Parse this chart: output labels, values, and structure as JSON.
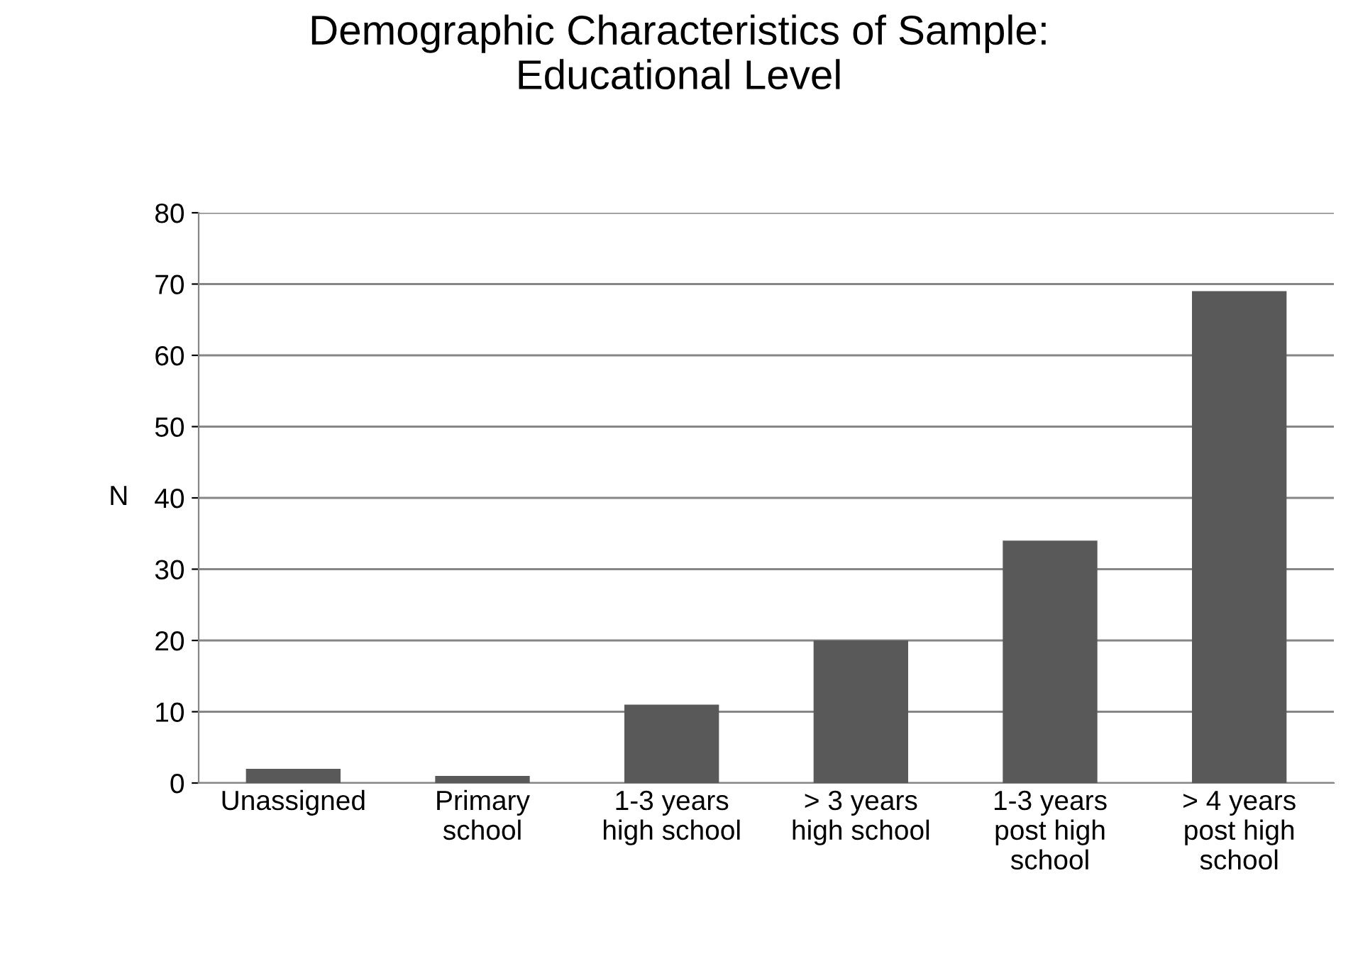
{
  "chart_data": {
    "type": "bar",
    "title": "Demographic Characteristics of Sample:\nEducational Level",
    "ylabel": "N",
    "categories": [
      "Unassigned",
      "Primary\nschool",
      "1-3 years\nhigh school",
      "> 3 years\nhigh school",
      "1-3 years\npost high\nschool",
      "> 4 years\npost high\nschool"
    ],
    "values": [
      2,
      1,
      11,
      20,
      34,
      69
    ],
    "color": "#595959",
    "ylim": [
      0,
      80
    ],
    "yticks": [
      0,
      10,
      20,
      30,
      40,
      50,
      60,
      70,
      80
    ],
    "grid": "y",
    "legend": false
  }
}
